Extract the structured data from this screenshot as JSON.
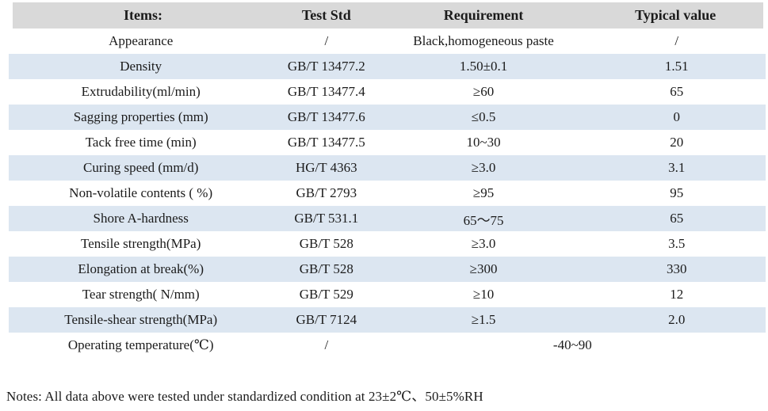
{
  "table": {
    "headers": [
      "Items:",
      "Test Std",
      "Requirement",
      "Typical value"
    ],
    "rows": [
      {
        "item": "Appearance",
        "std": "/",
        "req": "Black,homogeneous paste",
        "typ": "/"
      },
      {
        "item": "Density",
        "std": "GB/T 13477.2",
        "req": "1.50±0.1",
        "typ": "1.51"
      },
      {
        "item": "Extrudability(ml/min)",
        "std": "GB/T 13477.4",
        "req": "≥60",
        "typ": "65"
      },
      {
        "item": "Sagging properties (mm)",
        "std": "GB/T 13477.6",
        "req": "≤0.5",
        "typ": "0"
      },
      {
        "item": "Tack free time (min)",
        "std": "GB/T 13477.5",
        "req": "10~30",
        "typ": "20"
      },
      {
        "item": "Curing speed (mm/d)",
        "std": "HG/T 4363",
        "req": "≥3.0",
        "typ": "3.1"
      },
      {
        "item": "Non-volatile contents ( %)",
        "std": "GB/T 2793",
        "req": "≥95",
        "typ": "95"
      },
      {
        "item": "Shore A-hardness",
        "std": "GB/T 531.1",
        "req": "65～75",
        "typ": "65"
      },
      {
        "item": "Tensile strength(MPa)",
        "std": "GB/T 528",
        "req": "≥3.0",
        "typ": "3.5"
      },
      {
        "item": "Elongation at break(%)",
        "std": "GB/T 528",
        "req": "≥300",
        "typ": "330"
      },
      {
        "item": "Tear strength( N/mm)",
        "std": "GB/T 529",
        "req": "≥10",
        "typ": "12"
      },
      {
        "item": "Tensile-shear strength(MPa)",
        "std": "GB/T 7124",
        "req": "≥1.5",
        "typ": "2.0"
      },
      {
        "item": "Operating temperature(℃)",
        "std": "/",
        "req_span": "-40~90"
      }
    ]
  },
  "notes": "Notes: All data above were tested under standardized condition at 23±2℃、50±5%RH",
  "colors": {
    "header_bg": "#d9d9d9",
    "stripe_bg": "#dce6f1",
    "text": "#1b1b1b"
  }
}
